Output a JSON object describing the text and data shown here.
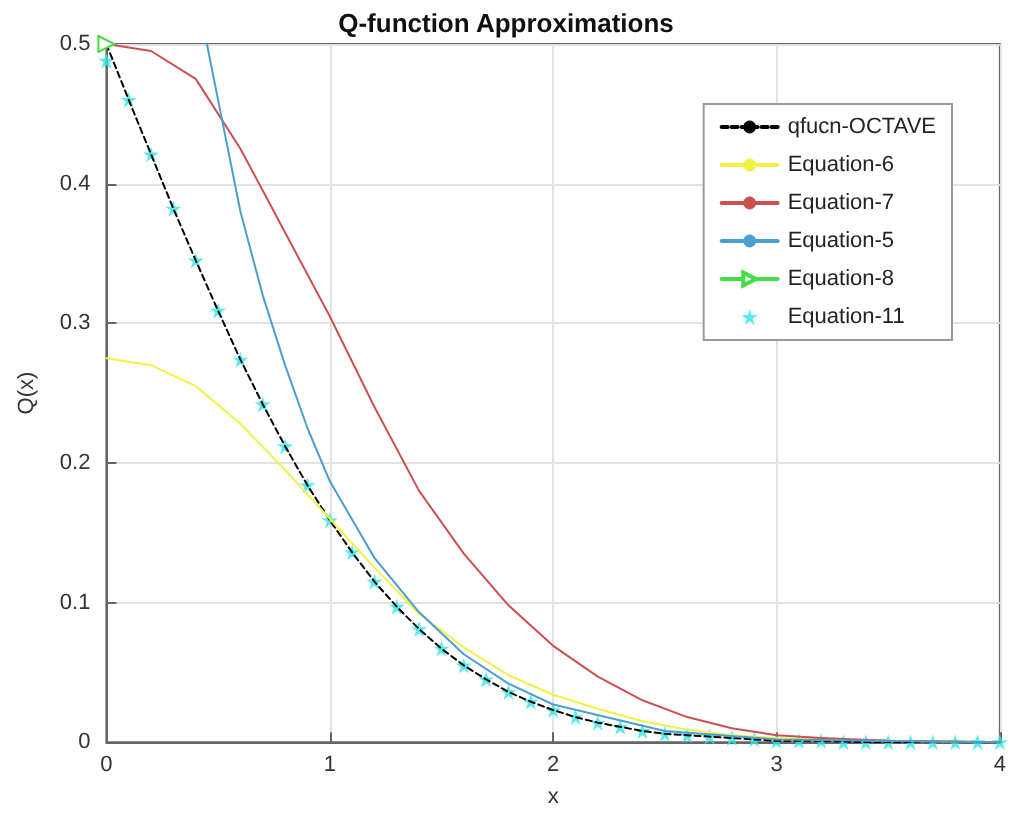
{
  "chart_data": {
    "type": "line",
    "title": "Q-function Approximations",
    "xlabel": "x",
    "ylabel": "Q(x)",
    "xlim": [
      0,
      4
    ],
    "xticks": [
      0,
      1,
      2,
      3,
      4
    ],
    "ylim": [
      0,
      0.5
    ],
    "yticks": [
      0,
      0.1,
      0.2,
      0.3,
      0.4,
      0.5
    ],
    "grid": true,
    "legend": "top right",
    "series": [
      {
        "name": "qfucn-OCTAVE",
        "color": "#000000",
        "line_style": "dashed",
        "marker": "none",
        "x": [
          0,
          0.1,
          0.2,
          0.3,
          0.4,
          0.5,
          0.6,
          0.7,
          0.8,
          0.9,
          1,
          1.1,
          1.2,
          1.3,
          1.4,
          1.5,
          1.6,
          1.7,
          1.8,
          1.9,
          2,
          2.1,
          2.2,
          2.3,
          2.4,
          2.5,
          2.6,
          2.7,
          2.8,
          2.9,
          3,
          3.2,
          3.4,
          3.6,
          3.8,
          4
        ],
        "values": [
          0.5,
          0.46,
          0.421,
          0.382,
          0.345,
          0.309,
          0.274,
          0.242,
          0.212,
          0.184,
          0.159,
          0.136,
          0.115,
          0.097,
          0.081,
          0.067,
          0.055,
          0.045,
          0.036,
          0.029,
          0.023,
          0.018,
          0.014,
          0.011,
          0.008,
          0.006,
          0.005,
          0.004,
          0.003,
          0.002,
          0.001,
          0.001,
          0,
          0,
          0,
          0
        ]
      },
      {
        "name": "Equation-6",
        "color": "#f2f244",
        "marker": "none",
        "x": [
          0,
          0.2,
          0.4,
          0.6,
          0.8,
          1,
          1.2,
          1.4,
          1.6,
          1.8,
          2,
          2.2,
          2.4,
          2.6,
          2.8,
          3,
          3.5,
          4
        ],
        "values": [
          0.275,
          0.27,
          0.255,
          0.228,
          0.195,
          0.16,
          0.125,
          0.092,
          0.068,
          0.048,
          0.034,
          0.024,
          0.015,
          0.009,
          0.005,
          0.003,
          0.001,
          0
        ]
      },
      {
        "name": "Equation-7",
        "color": "#cc5050",
        "marker": "none",
        "x": [
          0,
          0.2,
          0.4,
          0.6,
          0.8,
          1,
          1.2,
          1.4,
          1.6,
          1.8,
          2,
          2.2,
          2.4,
          2.6,
          2.8,
          3,
          3.2,
          3.5,
          4
        ],
        "values": [
          0.5,
          0.495,
          0.475,
          0.425,
          0.365,
          0.305,
          0.24,
          0.18,
          0.135,
          0.098,
          0.069,
          0.047,
          0.03,
          0.018,
          0.01,
          0.005,
          0.003,
          0.001,
          0
        ]
      },
      {
        "name": "Equation-5",
        "color": "#4a9fd0",
        "marker": "none",
        "x": [
          0.45,
          0.5,
          0.6,
          0.7,
          0.8,
          0.9,
          1,
          1.2,
          1.4,
          1.6,
          1.8,
          2,
          2.5,
          3,
          4
        ],
        "values": [
          0.5,
          0.46,
          0.38,
          0.32,
          0.27,
          0.225,
          0.187,
          0.132,
          0.093,
          0.063,
          0.042,
          0.027,
          0.008,
          0.002,
          0
        ]
      },
      {
        "name": "Equation-8",
        "color": "#44dd44",
        "marker": "triangle",
        "x": [
          0
        ],
        "values": [
          0.5
        ]
      },
      {
        "name": "Equation-11",
        "type": "scatter",
        "color": "#33e6e6",
        "marker": "star",
        "x": [
          0,
          0.1,
          0.2,
          0.3,
          0.4,
          0.5,
          0.6,
          0.7,
          0.8,
          0.9,
          1,
          1.1,
          1.2,
          1.3,
          1.4,
          1.5,
          1.6,
          1.7,
          1.8,
          1.9,
          2,
          2.1,
          2.2,
          2.3,
          2.4,
          2.5,
          2.6,
          2.7,
          2.8,
          2.9,
          3,
          3.1,
          3.2,
          3.3,
          3.4,
          3.5,
          3.6,
          3.7,
          3.8,
          3.9,
          4
        ],
        "values": [
          0.488,
          0.46,
          0.421,
          0.382,
          0.345,
          0.309,
          0.274,
          0.242,
          0.212,
          0.184,
          0.159,
          0.136,
          0.115,
          0.097,
          0.081,
          0.067,
          0.055,
          0.045,
          0.036,
          0.029,
          0.023,
          0.018,
          0.014,
          0.011,
          0.008,
          0.006,
          0.005,
          0.004,
          0.003,
          0.002,
          0.001,
          0.001,
          0.001,
          0,
          0,
          0,
          0,
          0,
          0,
          0,
          0
        ]
      }
    ]
  }
}
